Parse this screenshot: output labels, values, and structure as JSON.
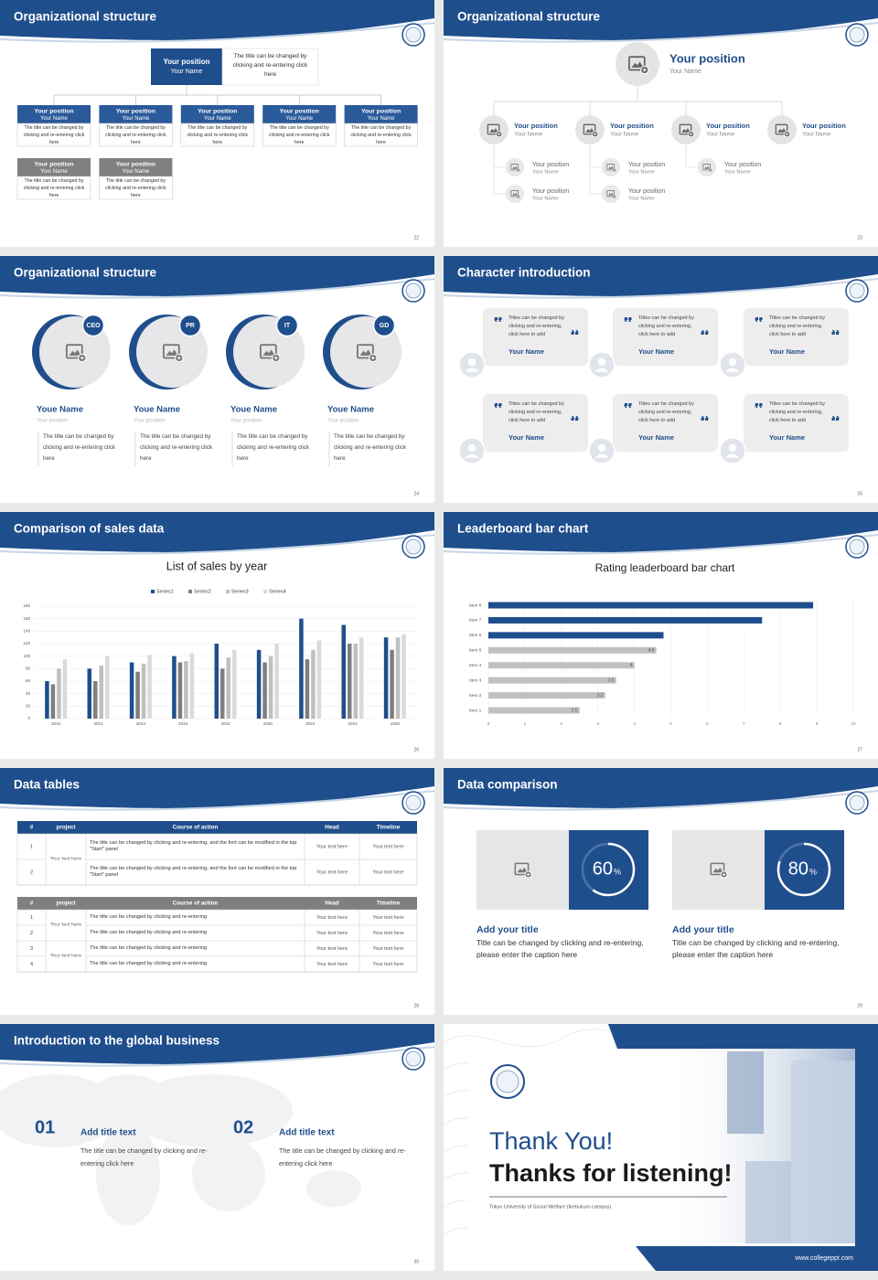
{
  "slides": [
    {
      "title": "Organizational structure",
      "page": "22",
      "top": {
        "position": "Your position",
        "name": "Your Name",
        "text": "The title can be changed by clicking and re-entering click here"
      },
      "boxes": [
        {
          "position": "Your position",
          "name": "Your Name",
          "text": "The title can be changed by clicking and re-entering click here"
        },
        {
          "position": "Your position",
          "name": "Your Name",
          "text": "The title can be changed by clicking and re-entering click here"
        },
        {
          "position": "Your position",
          "name": "Your Name",
          "text": "The title can be changed by clicking and re-entering click here"
        },
        {
          "position": "Your position",
          "name": "Your Name",
          "text": "The title can be changed by clicking and re-entering click here"
        },
        {
          "position": "Your position",
          "name": "Your Name",
          "text": "The title can be changed by clicking and re-entering click here"
        }
      ],
      "gray_boxes": [
        {
          "position": "Your position",
          "name": "Your Name",
          "text": "The title can be changed by clicking and re-entering click here"
        },
        {
          "position": "Your position",
          "name": "Your Name",
          "text": "The title can be changed by clicking and re-entering click here"
        }
      ]
    },
    {
      "title": "Organizational structure",
      "page": "23",
      "top": {
        "position": "Your position",
        "name": "Your Name"
      },
      "nodes": [
        {
          "position": "Your position",
          "name": "Your Name",
          "children": [
            {
              "position": "Your position",
              "name": "Your Name"
            },
            {
              "position": "Your position",
              "name": "Your Name"
            }
          ]
        },
        {
          "position": "Your position",
          "name": "Your Name",
          "children": [
            {
              "position": "Your position",
              "name": "Your Name"
            },
            {
              "position": "Your position",
              "name": "Your Name"
            }
          ]
        },
        {
          "position": "Your position",
          "name": "Your Name",
          "children": [
            {
              "position": "Your position",
              "name": "Your Name"
            }
          ]
        },
        {
          "position": "Your position",
          "name": "Your Name",
          "children": []
        }
      ]
    },
    {
      "title": "Organizational structure",
      "page": "24",
      "people": [
        {
          "badge": "CEO",
          "name": "Youe Name",
          "position": "Your position",
          "text": "The title can be changed by clicking and re-entering click here"
        },
        {
          "badge": "PR",
          "name": "Youe Name",
          "position": "Your position",
          "text": "The title can be changed by clicking and re-entering click here"
        },
        {
          "badge": "IT",
          "name": "Youe Name",
          "position": "Your position",
          "text": "The title can be changed by clicking and re-entering click here"
        },
        {
          "badge": "GD",
          "name": "Youe Name",
          "position": "Your position",
          "text": "The title can be changed by clicking and re-entering click here"
        }
      ]
    },
    {
      "title": "Character introduction",
      "page": "25",
      "cards": [
        {
          "text": "Titles can be changed by clicking and re-entering, click here to add",
          "name": "Your Name"
        },
        {
          "text": "Titles can be changed by clicking and re-entering, click here to add",
          "name": "Your Name"
        },
        {
          "text": "Titles can be changed by clicking and re-entering, click here to add",
          "name": "Your Name"
        },
        {
          "text": "Titles can be changed by clicking and re-entering, click here to add",
          "name": "Your Name"
        },
        {
          "text": "Titles can be changed by clicking and re-entering, click here to add",
          "name": "Your Name"
        },
        {
          "text": "Titles can be changed by clicking and re-entering, click here to add",
          "name": "Your Name"
        }
      ]
    },
    {
      "title": "Comparison of sales data",
      "page": "26",
      "chart": {
        "type": "bar",
        "title": "List of sales by year",
        "categories": [
          "2010",
          "2012",
          "2014",
          "2016",
          "2018",
          "2020",
          "2022",
          "2024",
          "2026"
        ],
        "series": [
          {
            "name": "Series1",
            "color": "#1f4e8c",
            "values": [
              60,
              80,
              90,
              100,
              120,
              110,
              160,
              150,
              130
            ]
          },
          {
            "name": "Series2",
            "color": "#7f7f7f",
            "values": [
              55,
              60,
              75,
              90,
              80,
              90,
              95,
              120,
              110
            ]
          },
          {
            "name": "Series3",
            "color": "#bfbfbf",
            "values": [
              80,
              85,
              88,
              92,
              98,
              100,
              110,
              120,
              130
            ]
          },
          {
            "name": "Series4",
            "color": "#dadada",
            "values": [
              95,
              100,
              102,
              105,
              110,
              120,
              125,
              130,
              135
            ]
          }
        ],
        "ylim": [
          0,
          180
        ],
        "yticks": [
          0,
          20,
          40,
          60,
          80,
          100,
          120,
          140,
          160,
          180
        ],
        "grid": true,
        "legend": "top"
      }
    },
    {
      "title": "Leaderboard bar chart",
      "page": "27",
      "chart": {
        "type": "barh",
        "title": "Rating leaderboard bar chart",
        "categories": [
          "Item 1",
          "Item 2",
          "Item 3",
          "Item 4",
          "Item 5",
          "Item 6",
          "Item 7",
          "Item 8"
        ],
        "values": [
          2.5,
          3.2,
          3.5,
          4,
          4.6,
          4.8,
          7.5,
          8.9
        ],
        "colors": [
          "#c0c0c0",
          "#c0c0c0",
          "#c0c0c0",
          "#c0c0c0",
          "#c0c0c0",
          "#1f4e8c",
          "#1f4e8c",
          "#1f4e8c"
        ],
        "value_labels": [
          "2.5",
          "3.2",
          "3.5",
          "4",
          "4.6",
          null,
          null,
          null
        ],
        "xlim": [
          0,
          10
        ],
        "xticks": [
          0,
          1,
          2,
          3,
          4,
          5,
          6,
          7,
          8,
          9,
          10
        ],
        "grid": true
      }
    },
    {
      "title": "Data tables",
      "page": "28",
      "tables": [
        {
          "header": [
            "#",
            "project",
            "Course of action",
            "Head",
            "Timeline"
          ],
          "groups": [
            {
              "project": "Your text here",
              "rows": [
                [
                  "1",
                  "The title can be changed by clicking and re-entering, and the font can be modified in the top \"Start\" panel",
                  "Your text here",
                  "Your text here"
                ],
                [
                  "2",
                  "The title can be changed by clicking and re-entering, and the font can be modified in the top \"Start\" panel",
                  "Your text here",
                  "Your text here"
                ]
              ]
            }
          ]
        },
        {
          "header": [
            "#",
            "project",
            "Course of action",
            "Head",
            "Timeline"
          ],
          "groups": [
            {
              "project": "Your text here",
              "rows": [
                [
                  "1",
                  "The title can be changed by clicking and re-entering",
                  "Your text here",
                  "Your text here"
                ],
                [
                  "2",
                  "The title can be changed by clicking and re-entering",
                  "Your text here",
                  "Your text here"
                ]
              ]
            },
            {
              "project": "Your text here",
              "rows": [
                [
                  "3",
                  "The title can be changed by clicking and re-entering",
                  "Your text here",
                  "Your text here"
                ],
                [
                  "4",
                  "The title can be changed by clicking and re-entering",
                  "Your text here",
                  "Your text here"
                ]
              ]
            }
          ]
        }
      ]
    },
    {
      "title": "Data comparison",
      "page": "29",
      "items": [
        {
          "percent": {
            "value": 60,
            "unit": "%"
          },
          "title": "Add your title",
          "text": "Title can be changed by clicking and re-entering, please enter the caption here"
        },
        {
          "percent": {
            "value": 80,
            "unit": "%"
          },
          "title": "Add your title",
          "text": "Title can be changed by clicking and re-entering, please enter the caption here"
        }
      ]
    },
    {
      "title": "Introduction to the global business",
      "page": "30",
      "items": [
        {
          "number": "01",
          "title": "Add title text",
          "text": "The title can be changed by clicking and re-entering click here"
        },
        {
          "number": "02",
          "title": "Add title text",
          "text": "The title can be changed by clicking and re-entering click here"
        }
      ]
    },
    {
      "thanks": "Thank You!",
      "subtitle": "Thanks for listening!",
      "caption": "Tokyo University of Social Welfare (Ikebukuro campus)",
      "url": "www.collegeppt.com"
    }
  ]
}
